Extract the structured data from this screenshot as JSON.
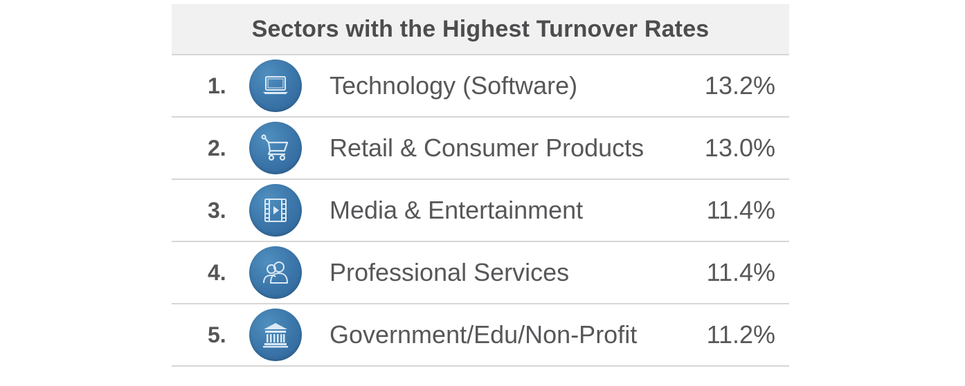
{
  "title": "Sectors with the Highest Turnover Rates",
  "rows": [
    {
      "rank": "1.",
      "icon": "laptop-icon",
      "label": "Technology (Software)",
      "value": "13.2%"
    },
    {
      "rank": "2.",
      "icon": "shopping-cart-icon",
      "label": "Retail & Consumer Products",
      "value": "13.0%"
    },
    {
      "rank": "3.",
      "icon": "film-play-icon",
      "label": "Media & Entertainment",
      "value": "11.4%"
    },
    {
      "rank": "4.",
      "icon": "people-icon",
      "label": "Professional Services",
      "value": "11.4%"
    },
    {
      "rank": "5.",
      "icon": "government-building-icon",
      "label": "Government/Edu/Non-Profit",
      "value": "11.2%"
    }
  ],
  "colors": {
    "icon_circle": "#3a74a8",
    "text": "#57575a",
    "header_bg": "#f1f1f1",
    "divider": "#d6d6d6"
  }
}
